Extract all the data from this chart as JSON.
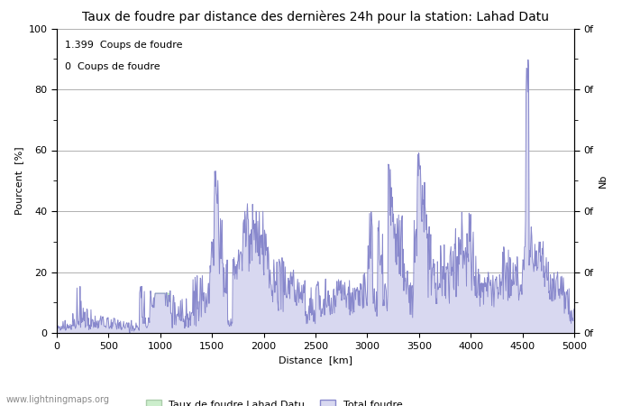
{
  "title": "Taux de foudre par distance des dernières 24h pour la station: Lahad Datu",
  "xlabel": "Distance  [km]",
  "ylabel": "Pourcent  [%]",
  "ylabel_right": "Nb",
  "annotation_line1": "1.399  Coups de foudre",
  "annotation_line2": "0  Coups de foudre",
  "legend_label1": "Taux de foudre Lahad Datu",
  "legend_label2": "Total foudre",
  "watermark": "www.lightningmaps.org",
  "xlim": [
    0,
    5000
  ],
  "ylim": [
    0,
    100
  ],
  "right_ytick_labels": [
    "0f",
    "0f",
    "0f",
    "0f",
    "0f",
    "0f"
  ],
  "right_ytick_positions": [
    0,
    20,
    40,
    60,
    80,
    100
  ],
  "grid_color": "#b0b0b0",
  "line_color": "#8888cc",
  "fill_color": "#d8d8f0",
  "green_fill_color": "#cceecc",
  "green_line_color": "#88cc88",
  "background_color": "#ffffff",
  "title_fontsize": 10,
  "label_fontsize": 8,
  "tick_fontsize": 8,
  "annotation_fontsize": 8
}
